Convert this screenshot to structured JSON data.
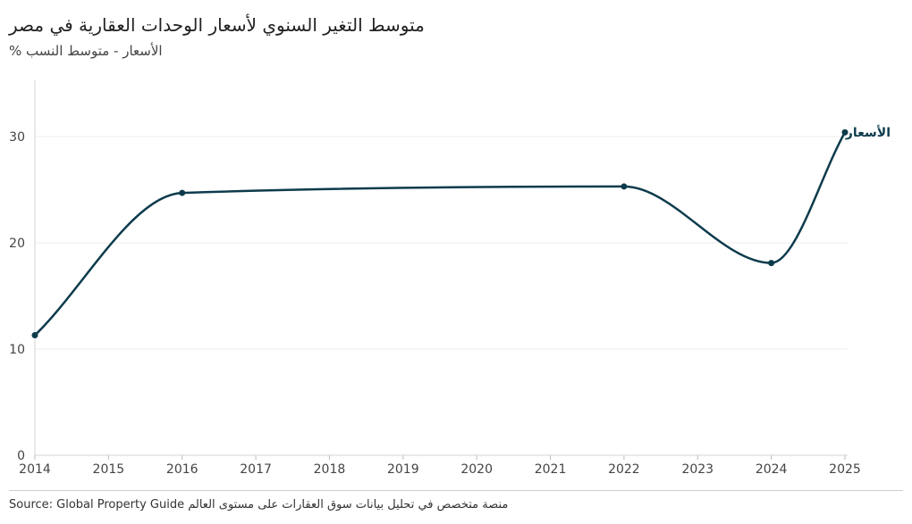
{
  "chart_data": {
    "type": "line",
    "title": "متوسط التغير السنوي لأسعار الوحدات العقارية في مصر",
    "subtitle": "الأسعار - متوسط النسب %",
    "x": [
      2014,
      2016,
      2022,
      2024,
      2025
    ],
    "x_ticks": [
      "2014",
      "2015",
      "2016",
      "2017",
      "2018",
      "2019",
      "2020",
      "2021",
      "2022",
      "2023",
      "2024",
      "2025"
    ],
    "y_ticks": [
      "0",
      "10",
      "20",
      "30"
    ],
    "ylim": [
      0,
      35
    ],
    "xlim": [
      2014,
      2025
    ],
    "grid": true,
    "series": [
      {
        "name": "الأسعار",
        "values": [
          11.3,
          24.7,
          25.3,
          18.1,
          30.4
        ],
        "color": "#0d3b4c"
      }
    ],
    "source": "Source: Global Property Guide منصة متخصص في تحليل بيانات سوق العقارات على مستوى العالم"
  }
}
